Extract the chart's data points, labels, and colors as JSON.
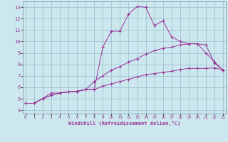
{
  "xlabel": "Windchill (Refroidissement éolien,°C)",
  "background_color": "#cce8ee",
  "plot_bg_color": "#cce8ee",
  "line_color": "#993399",
  "grid_color": "#99bbcc",
  "x_ticks": [
    0,
    1,
    2,
    3,
    4,
    5,
    6,
    7,
    8,
    9,
    10,
    11,
    12,
    13,
    14,
    15,
    16,
    17,
    18,
    19,
    20,
    21,
    22,
    23
  ],
  "y_ticks": [
    4,
    5,
    6,
    7,
    8,
    9,
    10,
    11,
    12,
    13
  ],
  "xlim": [
    -0.3,
    23.3
  ],
  "ylim": [
    3.7,
    13.5
  ],
  "series": [
    {
      "x": [
        0,
        1,
        2,
        3,
        4,
        5,
        6,
        7,
        8,
        9,
        10,
        11,
        12,
        13,
        14,
        15,
        16,
        17,
        18,
        19,
        20,
        21,
        22,
        23
      ],
      "y": [
        4.6,
        4.6,
        5.0,
        5.5,
        5.5,
        5.6,
        5.65,
        5.8,
        5.8,
        9.5,
        10.9,
        10.9,
        12.4,
        13.05,
        13.0,
        11.4,
        11.8,
        10.4,
        10.0,
        9.8,
        9.8,
        9.0,
        8.2,
        7.5
      ]
    },
    {
      "x": [
        0,
        1,
        2,
        3,
        4,
        5,
        6,
        7,
        8,
        9,
        10,
        11,
        12,
        13,
        14,
        15,
        16,
        17,
        18,
        19,
        20,
        21,
        22,
        23
      ],
      "y": [
        4.6,
        4.6,
        5.0,
        5.3,
        5.5,
        5.6,
        5.65,
        5.8,
        6.5,
        7.0,
        7.5,
        7.8,
        8.2,
        8.5,
        8.9,
        9.2,
        9.4,
        9.5,
        9.7,
        9.8,
        9.8,
        9.7,
        8.1,
        7.5
      ]
    },
    {
      "x": [
        0,
        1,
        2,
        3,
        4,
        5,
        6,
        7,
        8,
        9,
        10,
        11,
        12,
        13,
        14,
        15,
        16,
        17,
        18,
        19,
        20,
        21,
        22,
        23
      ],
      "y": [
        4.6,
        4.6,
        5.0,
        5.3,
        5.5,
        5.6,
        5.65,
        5.8,
        5.8,
        6.1,
        6.3,
        6.5,
        6.7,
        6.9,
        7.1,
        7.2,
        7.3,
        7.4,
        7.55,
        7.65,
        7.65,
        7.65,
        7.7,
        7.5
      ]
    }
  ]
}
